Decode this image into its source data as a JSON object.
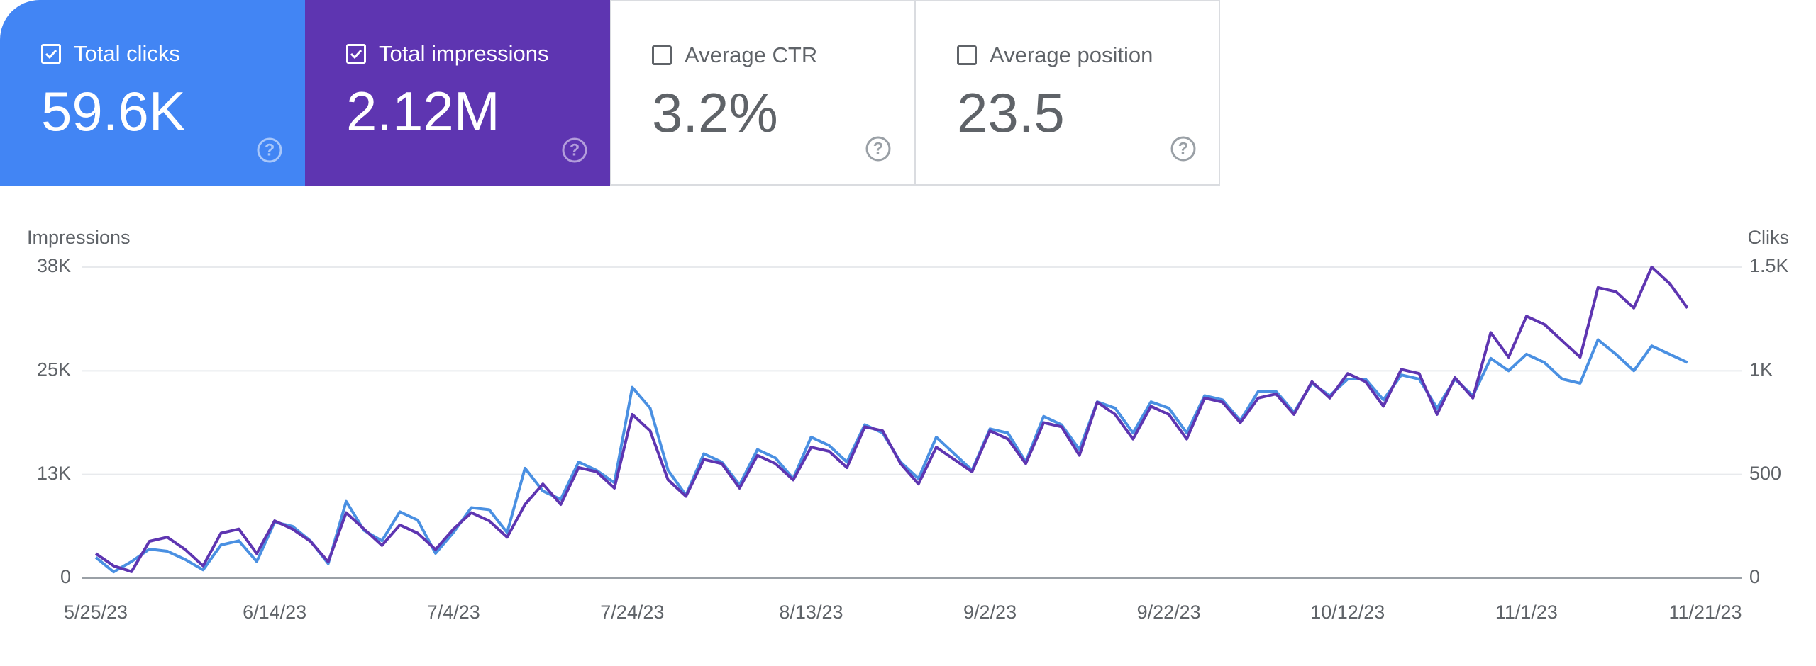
{
  "cards": [
    {
      "label": "Total clicks",
      "value": "59.6K"
    },
    {
      "label": "Total impressions",
      "value": "2.12M"
    },
    {
      "label": "Average CTR",
      "value": "3.2%"
    },
    {
      "label": "Average position",
      "value": "23.5"
    }
  ],
  "chart_data": {
    "type": "line",
    "y_label": "Impressions",
    "y2_label": "Cliks",
    "categories": [
      "5/25/23",
      null,
      null,
      null,
      null,
      null,
      null,
      null,
      null,
      null,
      "6/14/23",
      null,
      null,
      null,
      null,
      null,
      null,
      null,
      null,
      null,
      "7/4/23",
      null,
      null,
      null,
      null,
      null,
      null,
      null,
      null,
      null,
      "7/24/23",
      null,
      null,
      null,
      null,
      null,
      null,
      null,
      null,
      null,
      "8/13/23",
      null,
      null,
      null,
      null,
      null,
      null,
      null,
      null,
      null,
      "9/2/23",
      null,
      null,
      null,
      null,
      null,
      null,
      null,
      null,
      null,
      "9/22/23",
      null,
      null,
      null,
      null,
      null,
      null,
      null,
      null,
      null,
      "10/12/23",
      null,
      null,
      null,
      null,
      null,
      null,
      null,
      null,
      null,
      "11/1/23",
      null,
      null,
      null,
      null,
      null,
      null,
      null,
      null,
      null,
      "11/21/23"
    ],
    "series": [
      {
        "name": "Impressions",
        "color": "#5e35b1",
        "values": [
          3000,
          1500,
          800,
          4500,
          5000,
          3500,
          1500,
          5500,
          6000,
          3000,
          7000,
          6000,
          4500,
          2000,
          8000,
          6000,
          4000,
          6500,
          5500,
          3500,
          6000,
          8000,
          7000,
          5000,
          9000,
          11500,
          9000,
          13500,
          13000,
          11000,
          20000,
          18000,
          12000,
          10000,
          14500,
          14000,
          11000,
          15000,
          14000,
          12000,
          16000,
          15500,
          13500,
          18500,
          18000,
          14000,
          11500,
          16000,
          14500,
          13000,
          18000,
          17000,
          14000,
          19000,
          18500,
          15000,
          21500,
          20000,
          17000,
          21000,
          20000,
          17000,
          22000,
          21500,
          19000,
          22000,
          22500,
          20000,
          24000,
          22000,
          25000,
          24000,
          21000,
          25500,
          25000,
          20000,
          24500,
          22000,
          30000,
          27000,
          32000,
          31000,
          29000,
          27000,
          35500,
          35000,
          33000,
          38000,
          36000,
          33000,
          null
        ]
      },
      {
        "name": "Clicks",
        "color": "#4a90e2",
        "axis": "y2",
        "values": [
          100,
          30,
          80,
          140,
          130,
          90,
          40,
          160,
          180,
          80,
          270,
          250,
          180,
          70,
          370,
          230,
          180,
          320,
          280,
          120,
          220,
          340,
          330,
          220,
          530,
          420,
          380,
          560,
          520,
          460,
          920,
          820,
          520,
          400,
          600,
          560,
          450,
          620,
          580,
          480,
          680,
          640,
          560,
          740,
          700,
          560,
          480,
          680,
          600,
          520,
          720,
          700,
          560,
          780,
          740,
          620,
          850,
          820,
          700,
          850,
          820,
          700,
          880,
          860,
          760,
          900,
          900,
          800,
          940,
          880,
          960,
          960,
          860,
          980,
          960,
          820,
          960,
          880,
          1060,
          1000,
          1080,
          1040,
          960,
          940,
          1150,
          1080,
          1000,
          1120,
          1080,
          1040,
          null
        ]
      }
    ],
    "ylim": [
      0,
      38000
    ],
    "yticks": [
      0,
      {
        "value": 12667,
        "label": "13K"
      },
      {
        "value": 25333,
        "label": "25K"
      },
      {
        "value": 38000,
        "label": "38K"
      }
    ],
    "y2lim": [
      0,
      1500
    ],
    "y2ticks": [
      0,
      500,
      {
        "value": 1000,
        "label": "1K"
      },
      {
        "value": 1500,
        "label": "1.5K"
      }
    ],
    "grid": true
  }
}
